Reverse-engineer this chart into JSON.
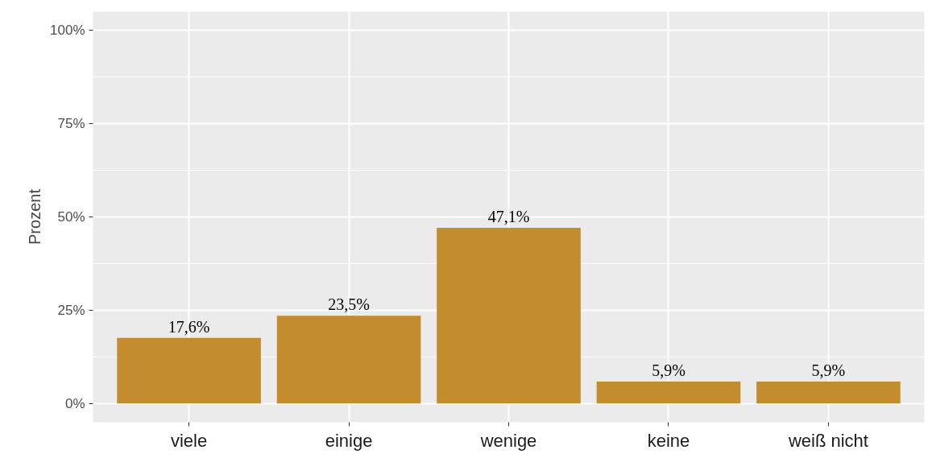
{
  "chart_data": {
    "type": "bar",
    "ylabel": "Prozent",
    "categories": [
      "viele",
      "einige",
      "wenige",
      "keine",
      "weiß nicht"
    ],
    "values": [
      17.6,
      23.5,
      47.1,
      5.9,
      5.9
    ],
    "value_labels": [
      "17,6%",
      "23,5%",
      "47,1%",
      "5,9%",
      "5,9%"
    ],
    "color": "#c28c2f",
    "ylim": [
      -5,
      105
    ],
    "yticks": [
      {
        "value": 0,
        "label": "0%"
      },
      {
        "value": 25,
        "label": "25%"
      },
      {
        "value": 50,
        "label": "50%"
      },
      {
        "value": 75,
        "label": "75%"
      },
      {
        "value": 100,
        "label": "100%"
      }
    ],
    "grid": true
  }
}
